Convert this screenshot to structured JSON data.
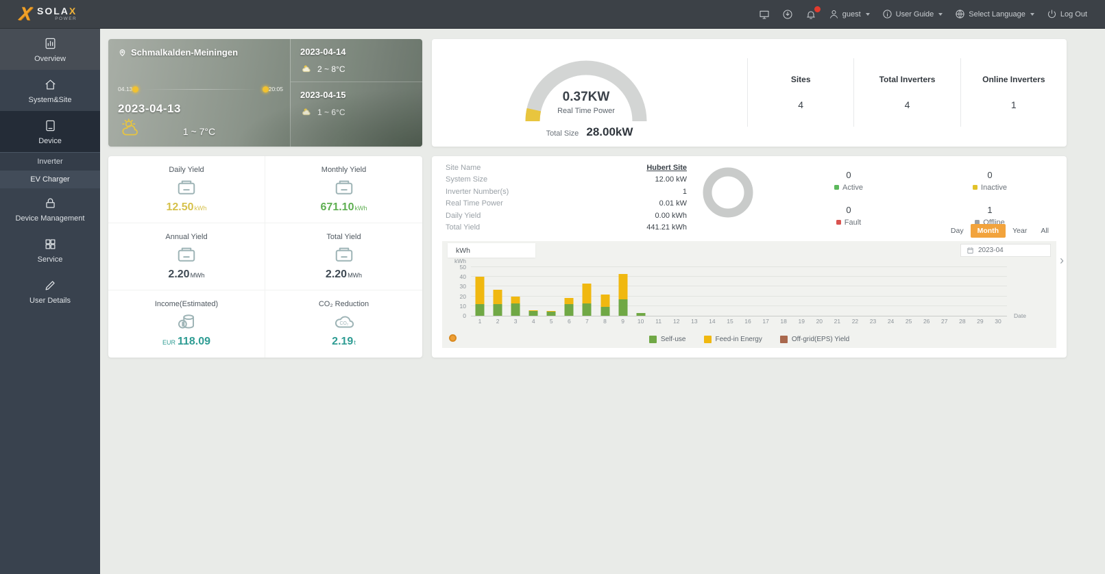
{
  "header": {
    "logo": {
      "text": "SOLA",
      "accent": "X",
      "sub": "POWER"
    },
    "icons": [
      {
        "name": "apps-icon",
        "glyph": "monitor",
        "badge": false
      },
      {
        "name": "download-icon",
        "glyph": "download",
        "badge": false
      },
      {
        "name": "notifications-icon",
        "glyph": "bell",
        "badge": true
      }
    ],
    "menus": [
      {
        "name": "user-menu",
        "icon": "person",
        "label": "guest",
        "caret": true
      },
      {
        "name": "user-guide-menu",
        "icon": "guide",
        "label": "User Guide",
        "caret": true
      },
      {
        "name": "language-menu",
        "icon": "globe",
        "label": "Select Language",
        "caret": true
      },
      {
        "name": "logout-button",
        "icon": "power",
        "label": "Log Out",
        "caret": false
      }
    ]
  },
  "sidebar": {
    "items": [
      {
        "key": "overview",
        "label": "Overview",
        "icon": "overview",
        "lighter": true
      },
      {
        "key": "system-site",
        "label": "System&Site",
        "icon": "site"
      },
      {
        "key": "device",
        "label": "Device",
        "icon": "device",
        "active": true,
        "submenu": [
          {
            "label": "Inverter",
            "highlight": false
          },
          {
            "label": "EV Charger",
            "highlight": true
          }
        ]
      },
      {
        "key": "device-management",
        "label": "Device Management",
        "icon": "lock"
      },
      {
        "key": "service",
        "label": "Service",
        "icon": "service"
      },
      {
        "key": "user-details",
        "label": "User Details",
        "icon": "pencil"
      }
    ]
  },
  "weather": {
    "location": "Schmalkalden-Meiningen",
    "sun_start": "04.13",
    "sun_end": "20:05",
    "today": {
      "date": "2023-04-13",
      "temp": "1 ~ 7°C"
    },
    "forecast": [
      {
        "date": "2023-04-14",
        "temp": "2 ~ 8°C"
      },
      {
        "date": "2023-04-15",
        "temp": "1 ~ 6°C"
      }
    ]
  },
  "gauge": {
    "value": "0.37KW",
    "label": "Real Time Power",
    "total_label": "Total Size",
    "total_value": "28.00kW",
    "accent_color": "#e8c53e",
    "track_color": "#d3d5d4",
    "stats": [
      {
        "label": "Sites",
        "value": "4"
      },
      {
        "label": "Total Inverters",
        "value": "4"
      },
      {
        "label": "Online Inverters",
        "value": "1"
      }
    ]
  },
  "yields": {
    "items": [
      {
        "label": "Daily Yield",
        "value": "12.50",
        "unit": "kWh",
        "prefix": "",
        "color": "#d6c14b",
        "icon": "meter"
      },
      {
        "label": "Monthly Yield",
        "value": "671.10",
        "unit": "kWh",
        "prefix": "",
        "color": "#5faf52",
        "icon": "meter"
      },
      {
        "label": "Annual Yield",
        "value": "2.20",
        "unit": "MWh",
        "prefix": "",
        "color": "#3f4a54",
        "icon": "meter"
      },
      {
        "label": "Total Yield",
        "value": "2.20",
        "unit": "MWh",
        "prefix": "",
        "color": "#3f4a54",
        "icon": "meter"
      },
      {
        "label": "Income(Estimated)",
        "value": "118.09",
        "unit": "",
        "prefix": "EUR",
        "color": "#2e9c93",
        "icon": "coins"
      },
      {
        "label": "CO₂ Reduction",
        "value": "2.19",
        "unit": "t",
        "prefix": "",
        "color": "#2e9c93",
        "icon": "co2"
      }
    ]
  },
  "site": {
    "rows": [
      {
        "label": "Site Name",
        "value": "Hubert Site",
        "link": true
      },
      {
        "label": "System Size",
        "value": "12.00 kW",
        "link": false
      },
      {
        "label": "Inverter Number(s)",
        "value": "1",
        "link": false
      },
      {
        "label": "Real Time Power",
        "value": "0.01 kW",
        "link": false
      },
      {
        "label": "Daily Yield",
        "value": "0.00 kWh",
        "link": false
      },
      {
        "label": "Total Yield",
        "value": "441.21 kWh",
        "link": false
      }
    ],
    "donut_color": "#c9cbca",
    "status": [
      {
        "count": "0",
        "label": "Active",
        "color": "#5cb85c"
      },
      {
        "count": "0",
        "label": "Inactive",
        "color": "#e2c229"
      },
      {
        "count": "0",
        "label": "Fault",
        "color": "#d9534f"
      },
      {
        "count": "1",
        "label": "Offline",
        "color": "#9aa0a6"
      }
    ],
    "range_tabs": [
      {
        "label": "Day",
        "active": false
      },
      {
        "label": "Month",
        "active": true
      },
      {
        "label": "Year",
        "active": false
      },
      {
        "label": "All",
        "active": false
      }
    ],
    "unit_tab": "kWh",
    "date_picker": "2023-04"
  },
  "chart_data": {
    "type": "bar",
    "stacked": true,
    "title": "",
    "xlabel": "Date",
    "ylabel": "kWh",
    "ylim": [
      0,
      50
    ],
    "yticks": [
      0,
      10,
      20,
      30,
      40,
      50
    ],
    "grid": true,
    "legend_position": "bottom",
    "categories": [
      1,
      2,
      3,
      4,
      5,
      6,
      7,
      8,
      9,
      10,
      11,
      12,
      13,
      14,
      15,
      16,
      17,
      18,
      19,
      20,
      21,
      22,
      23,
      24,
      25,
      26,
      27,
      28,
      29,
      30
    ],
    "series": [
      {
        "name": "Self-use",
        "color": "#70a845",
        "values": [
          12,
          12,
          13,
          5,
          4,
          12,
          13,
          9,
          17,
          3,
          0,
          0,
          0,
          0,
          0,
          0,
          0,
          0,
          0,
          0,
          0,
          0,
          0,
          0,
          0,
          0,
          0,
          0,
          0,
          0
        ]
      },
      {
        "name": "Feed-in Energy",
        "color": "#f0b810",
        "values": [
          28,
          15,
          7,
          1,
          1,
          6,
          20,
          13,
          26,
          0,
          0,
          0,
          0,
          0,
          0,
          0,
          0,
          0,
          0,
          0,
          0,
          0,
          0,
          0,
          0,
          0,
          0,
          0,
          0,
          0
        ]
      },
      {
        "name": "Off-grid(EPS) Yield",
        "color": "#a9684d",
        "values": [
          0,
          0,
          0,
          0,
          0,
          0,
          0,
          0,
          0,
          0,
          0,
          0,
          0,
          0,
          0,
          0,
          0,
          0,
          0,
          0,
          0,
          0,
          0,
          0,
          0,
          0,
          0,
          0,
          0,
          0
        ]
      }
    ]
  }
}
